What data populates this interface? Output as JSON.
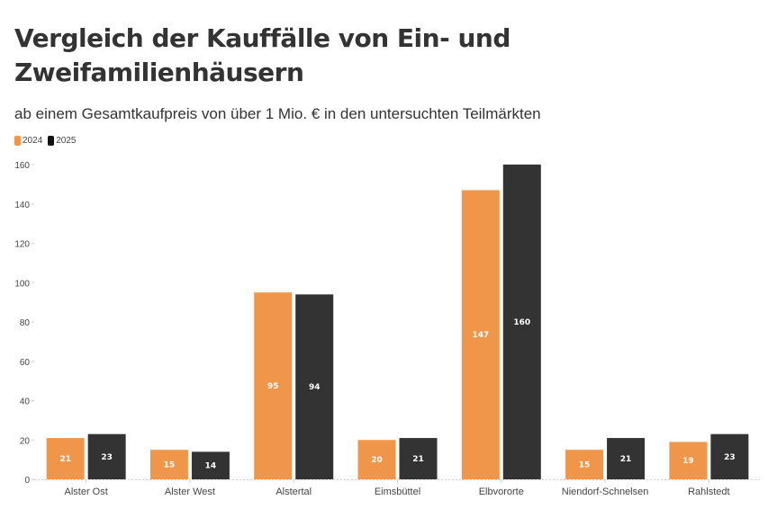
{
  "header": {
    "title": "Vergleich der Kauffälle von Ein- und Zweifamilienhäusern",
    "subtitle": "ab einem Gesamtkaufpreis von über 1 Mio. € in den untersuchten Teilmärkten"
  },
  "legend": {
    "items": [
      {
        "label": "2024",
        "color": "#f0964a"
      },
      {
        "label": "2025",
        "color": "#333333"
      }
    ]
  },
  "chart_data": {
    "type": "bar",
    "title": "Vergleich der Kauffälle von Ein- und Zweifamilienhäusern",
    "subtitle": "ab einem Gesamtkaufpreis von über 1 Mio. € in den untersuchten Teilmärkten",
    "xlabel": "",
    "ylabel": "",
    "categories": [
      "Alster Ost",
      "Alster West",
      "Alstertal",
      "Eimsbüttel",
      "Elbvororte",
      "Niendorf-Schnelsen",
      "Rahlstedt"
    ],
    "series": [
      {
        "name": "2024",
        "color": "#f0964a",
        "values": [
          21,
          15,
          95,
          20,
          147,
          15,
          19
        ]
      },
      {
        "name": "2025",
        "color": "#333333",
        "values": [
          23,
          14,
          94,
          21,
          160,
          21,
          23
        ]
      }
    ],
    "ylim": [
      0,
      160
    ],
    "yticks": [
      0,
      20,
      40,
      60,
      80,
      100,
      120,
      140,
      160
    ],
    "grid": false,
    "legend_position": "top-left",
    "data_labels": true
  }
}
